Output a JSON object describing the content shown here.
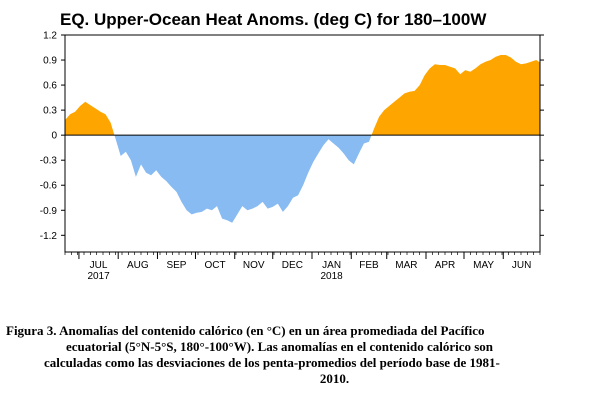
{
  "chart_data": {
    "type": "area",
    "title": "EQ. Upper-Ocean Heat Anoms. (deg C) for 180–100W",
    "xlabel": "",
    "ylabel": "",
    "ylim": [
      -1.4,
      1.2
    ],
    "yticks": [
      "1.2",
      "0.9",
      "0.6",
      "0.3",
      "0",
      "-0.3",
      "-0.6",
      "-0.9",
      "-1.2"
    ],
    "ytick_values": [
      1.2,
      0.9,
      0.6,
      0.3,
      0,
      -0.3,
      -0.6,
      -0.9,
      -1.2
    ],
    "x_range": [
      "2017-06-20",
      "2018-06-30"
    ],
    "month_ticks": [
      {
        "date": "2017-07-01",
        "label": "JUL",
        "year": "2017"
      },
      {
        "date": "2017-08-01",
        "label": "AUG",
        "year": ""
      },
      {
        "date": "2017-09-01",
        "label": "SEP",
        "year": ""
      },
      {
        "date": "2017-10-01",
        "label": "OCT",
        "year": ""
      },
      {
        "date": "2017-11-01",
        "label": "NOV",
        "year": ""
      },
      {
        "date": "2017-12-01",
        "label": "DEC",
        "year": ""
      },
      {
        "date": "2018-01-01",
        "label": "JAN",
        "year": "2018"
      },
      {
        "date": "2018-02-01",
        "label": "FEB",
        "year": ""
      },
      {
        "date": "2018-03-01",
        "label": "MAR",
        "year": ""
      },
      {
        "date": "2018-04-01",
        "label": "APR",
        "year": ""
      },
      {
        "date": "2018-05-01",
        "label": "MAY",
        "year": ""
      },
      {
        "date": "2018-06-01",
        "label": "JUN",
        "year": ""
      }
    ],
    "positive_color": "#ffa500",
    "negative_color": "#87bbf1",
    "grid": false,
    "series": [
      {
        "x": [
          "2017-06-20",
          "2017-06-24",
          "2017-06-28",
          "2017-07-02",
          "2017-07-06",
          "2017-07-10",
          "2017-07-14",
          "2017-07-18",
          "2017-07-22",
          "2017-07-26",
          "2017-07-30",
          "2017-08-03",
          "2017-08-07",
          "2017-08-11",
          "2017-08-15",
          "2017-08-19",
          "2017-08-23",
          "2017-08-27",
          "2017-08-31",
          "2017-09-04",
          "2017-09-08",
          "2017-09-12",
          "2017-09-16",
          "2017-09-20",
          "2017-09-24",
          "2017-09-28",
          "2017-10-02",
          "2017-10-06",
          "2017-10-10",
          "2017-10-14",
          "2017-10-18",
          "2017-10-22",
          "2017-10-26",
          "2017-10-30",
          "2017-11-03",
          "2017-11-07",
          "2017-11-11",
          "2017-11-15",
          "2017-11-19",
          "2017-11-23",
          "2017-11-27",
          "2017-12-01",
          "2017-12-05",
          "2017-12-09",
          "2017-12-13",
          "2017-12-17",
          "2017-12-21",
          "2017-12-25",
          "2017-12-29",
          "2018-01-02",
          "2018-01-06",
          "2018-01-10",
          "2018-01-14",
          "2018-01-18",
          "2018-01-22",
          "2018-01-26",
          "2018-01-30",
          "2018-02-03",
          "2018-02-07",
          "2018-02-11",
          "2018-02-15",
          "2018-02-19",
          "2018-02-23",
          "2018-02-27",
          "2018-03-03",
          "2018-03-07",
          "2018-03-11",
          "2018-03-15",
          "2018-03-19",
          "2018-03-23",
          "2018-03-27",
          "2018-03-31",
          "2018-04-04",
          "2018-04-08",
          "2018-04-12",
          "2018-04-16",
          "2018-04-20",
          "2018-04-24",
          "2018-04-28",
          "2018-05-02",
          "2018-05-06",
          "2018-05-10",
          "2018-05-14",
          "2018-05-18",
          "2018-05-22",
          "2018-05-26",
          "2018-05-30",
          "2018-06-03",
          "2018-06-07",
          "2018-06-11",
          "2018-06-15",
          "2018-06-19",
          "2018-06-23",
          "2018-06-27",
          "2018-06-30"
        ],
        "y": [
          0.18,
          0.25,
          0.28,
          0.35,
          0.4,
          0.36,
          0.32,
          0.28,
          0.25,
          0.15,
          -0.05,
          -0.25,
          -0.2,
          -0.3,
          -0.5,
          -0.35,
          -0.45,
          -0.48,
          -0.42,
          -0.5,
          -0.55,
          -0.62,
          -0.68,
          -0.8,
          -0.9,
          -0.95,
          -0.93,
          -0.92,
          -0.88,
          -0.9,
          -0.85,
          -1.0,
          -1.02,
          -1.05,
          -0.95,
          -0.85,
          -0.9,
          -0.88,
          -0.85,
          -0.8,
          -0.88,
          -0.86,
          -0.82,
          -0.92,
          -0.85,
          -0.75,
          -0.72,
          -0.6,
          -0.45,
          -0.32,
          -0.22,
          -0.12,
          -0.05,
          -0.1,
          -0.15,
          -0.22,
          -0.3,
          -0.35,
          -0.22,
          -0.1,
          -0.08,
          0.08,
          0.22,
          0.3,
          0.35,
          0.4,
          0.45,
          0.5,
          0.52,
          0.53,
          0.6,
          0.72,
          0.8,
          0.85,
          0.84,
          0.84,
          0.82,
          0.8,
          0.73,
          0.78,
          0.76,
          0.8,
          0.85,
          0.88,
          0.9,
          0.94,
          0.96,
          0.96,
          0.93,
          0.88,
          0.85,
          0.86,
          0.88,
          0.9,
          0.87
        ]
      }
    ]
  },
  "caption": {
    "line1": "Figura 3. Anomalías del contenido calórico (en °C) en un área promediada del Pacífico",
    "line2": "ecuatorial (5°N-5°S, 180°-100°W). Las anomalías en el contenido calórico son",
    "line3": "calculadas como las desviaciones de los penta-promedios del período base de 1981-",
    "line4": "2010."
  }
}
